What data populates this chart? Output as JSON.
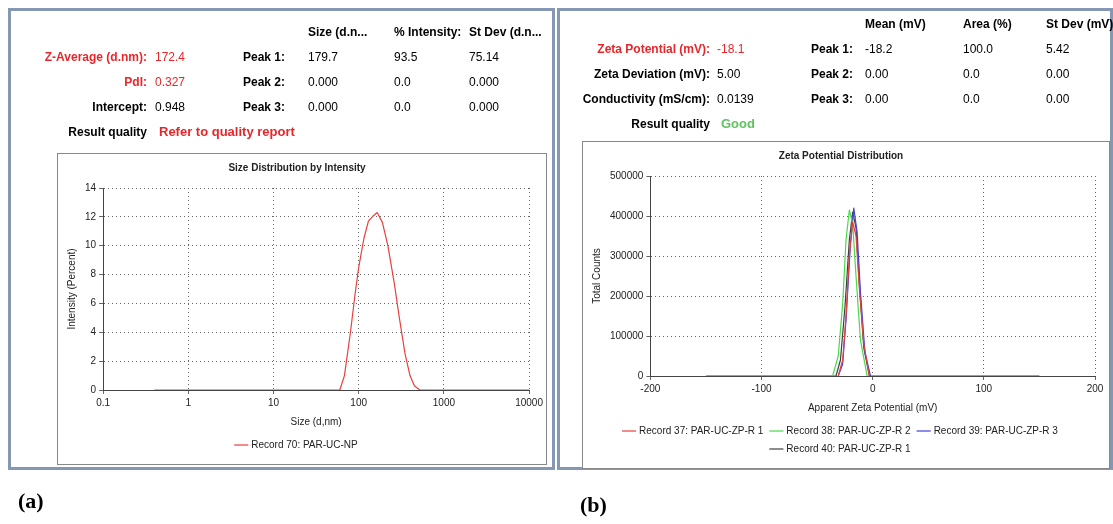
{
  "chart_data": [
    {
      "type": "other",
      "annotations": [
        "Size (d.n...",
        "% Intensity:",
        "St Dev (d.n...",
        "Z-Average (d.nm):",
        "172.4",
        "Peak 1:",
        "179.7",
        "93.5",
        "75.14",
        "PdI:",
        "0.327",
        "Peak 2:",
        "0.000",
        "0.0",
        "0.000",
        "Intercept:",
        "0.948",
        "Peak 3:",
        "0.000",
        "0.0",
        "0.000",
        "Result quality",
        "Refer to quality report"
      ],
      "colors": [
        "#000000",
        "#000000",
        "#000000",
        "#e8262a",
        "#e8262a",
        "#000000",
        "#000000",
        "#000000",
        "#000000",
        "#e8262a",
        "#e8262a",
        "#000000",
        "#000000",
        "#000000",
        "#000000",
        "#000000",
        "#000000",
        "#000000",
        "#000000",
        "#000000",
        "#000000",
        "#000000",
        "#e8262a"
      ]
    },
    {
      "type": "line",
      "title": "Size Distribution by Intensity",
      "xlabel": "Size (d,nm)",
      "ylabel": "Intensity (Percent)",
      "log": "x",
      "xlim": [
        0.1,
        10000
      ],
      "xticks": [
        0.1,
        1,
        10,
        100,
        1000,
        10000
      ],
      "ylim": [
        0,
        14
      ],
      "yticks": [
        0,
        2,
        4,
        6,
        8,
        10,
        12,
        14
      ],
      "grid": true,
      "legend": "bottom",
      "annotations": [
        "(a)"
      ],
      "series": [
        {
          "name": "Record 70: PAR-UC-NP",
          "color": "#e8403f",
          "x": [
            0.4,
            55,
            60,
            68,
            80,
            90,
            100,
            115,
            130,
            150,
            165,
            190,
            220,
            260,
            300,
            350,
            400,
            450,
            520,
            10000
          ],
          "values": [
            0,
            0,
            0,
            1,
            4,
            6.5,
            8.5,
            10.5,
            11.7,
            12.1,
            12.3,
            11.6,
            10,
            7.5,
            5,
            2.5,
            1,
            0.3,
            0,
            0
          ]
        }
      ]
    },
    {
      "type": "other",
      "annotations": [
        "Mean (mV)",
        "Area (%)",
        "St Dev (mV)",
        "Zeta Potential (mV):",
        "-18.1",
        "Peak 1:",
        "-18.2",
        "100.0",
        "5.42",
        "Zeta Deviation (mV):",
        "5.00",
        "Peak 2:",
        "0.00",
        "0.0",
        "0.00",
        "Conductivity (mS/cm):",
        "0.0139",
        "Peak 3:",
        "0.00",
        "0.0",
        "0.00",
        "Result quality",
        "Good"
      ],
      "colors": [
        "#000000",
        "#000000",
        "#000000",
        "#e8262a",
        "#e8262a",
        "#000000",
        "#000000",
        "#000000",
        "#000000",
        "#000000",
        "#000000",
        "#000000",
        "#000000",
        "#000000",
        "#000000",
        "#000000",
        "#000000",
        "#000000",
        "#000000",
        "#000000",
        "#000000",
        "#000000",
        "#5cc45c"
      ]
    },
    {
      "type": "line",
      "title": "Zeta Potential Distribution",
      "xlabel": "Apparent Zeta Potential (mV)",
      "ylabel": "Total Counts",
      "xlim": [
        -200,
        200
      ],
      "xticks": [
        -200,
        -100,
        0,
        100,
        200
      ],
      "ylim": [
        0,
        500000
      ],
      "yticks": [
        0,
        100000,
        200000,
        300000,
        400000,
        500000
      ],
      "grid": true,
      "legend": "bottom",
      "annotations": [
        "(b)"
      ],
      "series": [
        {
          "name": "Record 37: PAR-UC-ZP-R 1",
          "color": "#e8403f",
          "x": [
            -31,
            -27,
            -24,
            -21,
            -18,
            -15,
            -12,
            -8,
            -3
          ],
          "values": [
            0,
            40000,
            150000,
            300000,
            385000,
            350000,
            220000,
            80000,
            0
          ]
        },
        {
          "name": "Record 38: PAR-UC-ZP-R 2",
          "color": "#4cd84c",
          "x": [
            -36,
            -31,
            -27,
            -24,
            -21,
            -18,
            -15,
            -11,
            -5
          ],
          "values": [
            0,
            50000,
            180000,
            340000,
            415000,
            380000,
            250000,
            90000,
            0
          ]
        },
        {
          "name": "Record 39: PAR-UC-ZP-R 3",
          "color": "#4040e0",
          "x": [
            -31,
            -27,
            -24,
            -20,
            -17,
            -14,
            -11,
            -7,
            -2
          ],
          "values": [
            0,
            30000,
            140000,
            330000,
            420000,
            360000,
            210000,
            60000,
            0
          ]
        },
        {
          "name": "Record 40: PAR-UC-ZP-R 1",
          "color": "#404040",
          "x": [
            -150,
            -33,
            -29,
            -25,
            -21,
            -18,
            -15,
            -12,
            -8,
            -3,
            150
          ],
          "values": [
            0,
            0,
            40000,
            170000,
            340000,
            410000,
            370000,
            230000,
            70000,
            0,
            0
          ]
        }
      ]
    }
  ]
}
